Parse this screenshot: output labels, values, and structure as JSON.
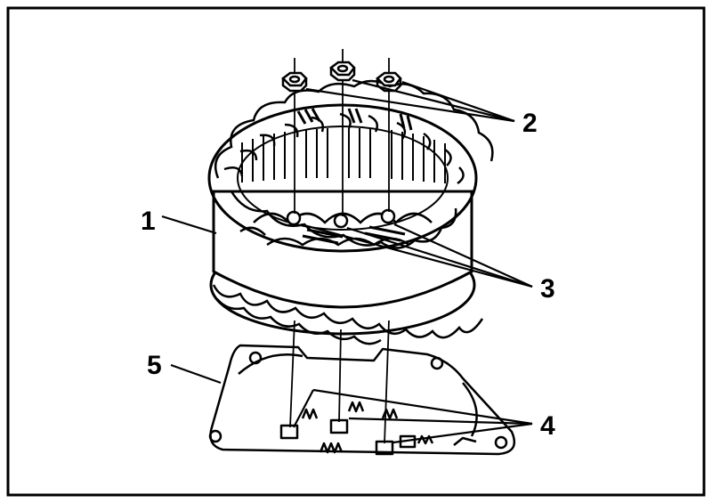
{
  "callouts": {
    "c1": "1",
    "c2": "2",
    "c3": "3",
    "c4": "4",
    "c5": "5"
  },
  "colors": {
    "ink": "#000000",
    "paper": "#ffffff"
  }
}
